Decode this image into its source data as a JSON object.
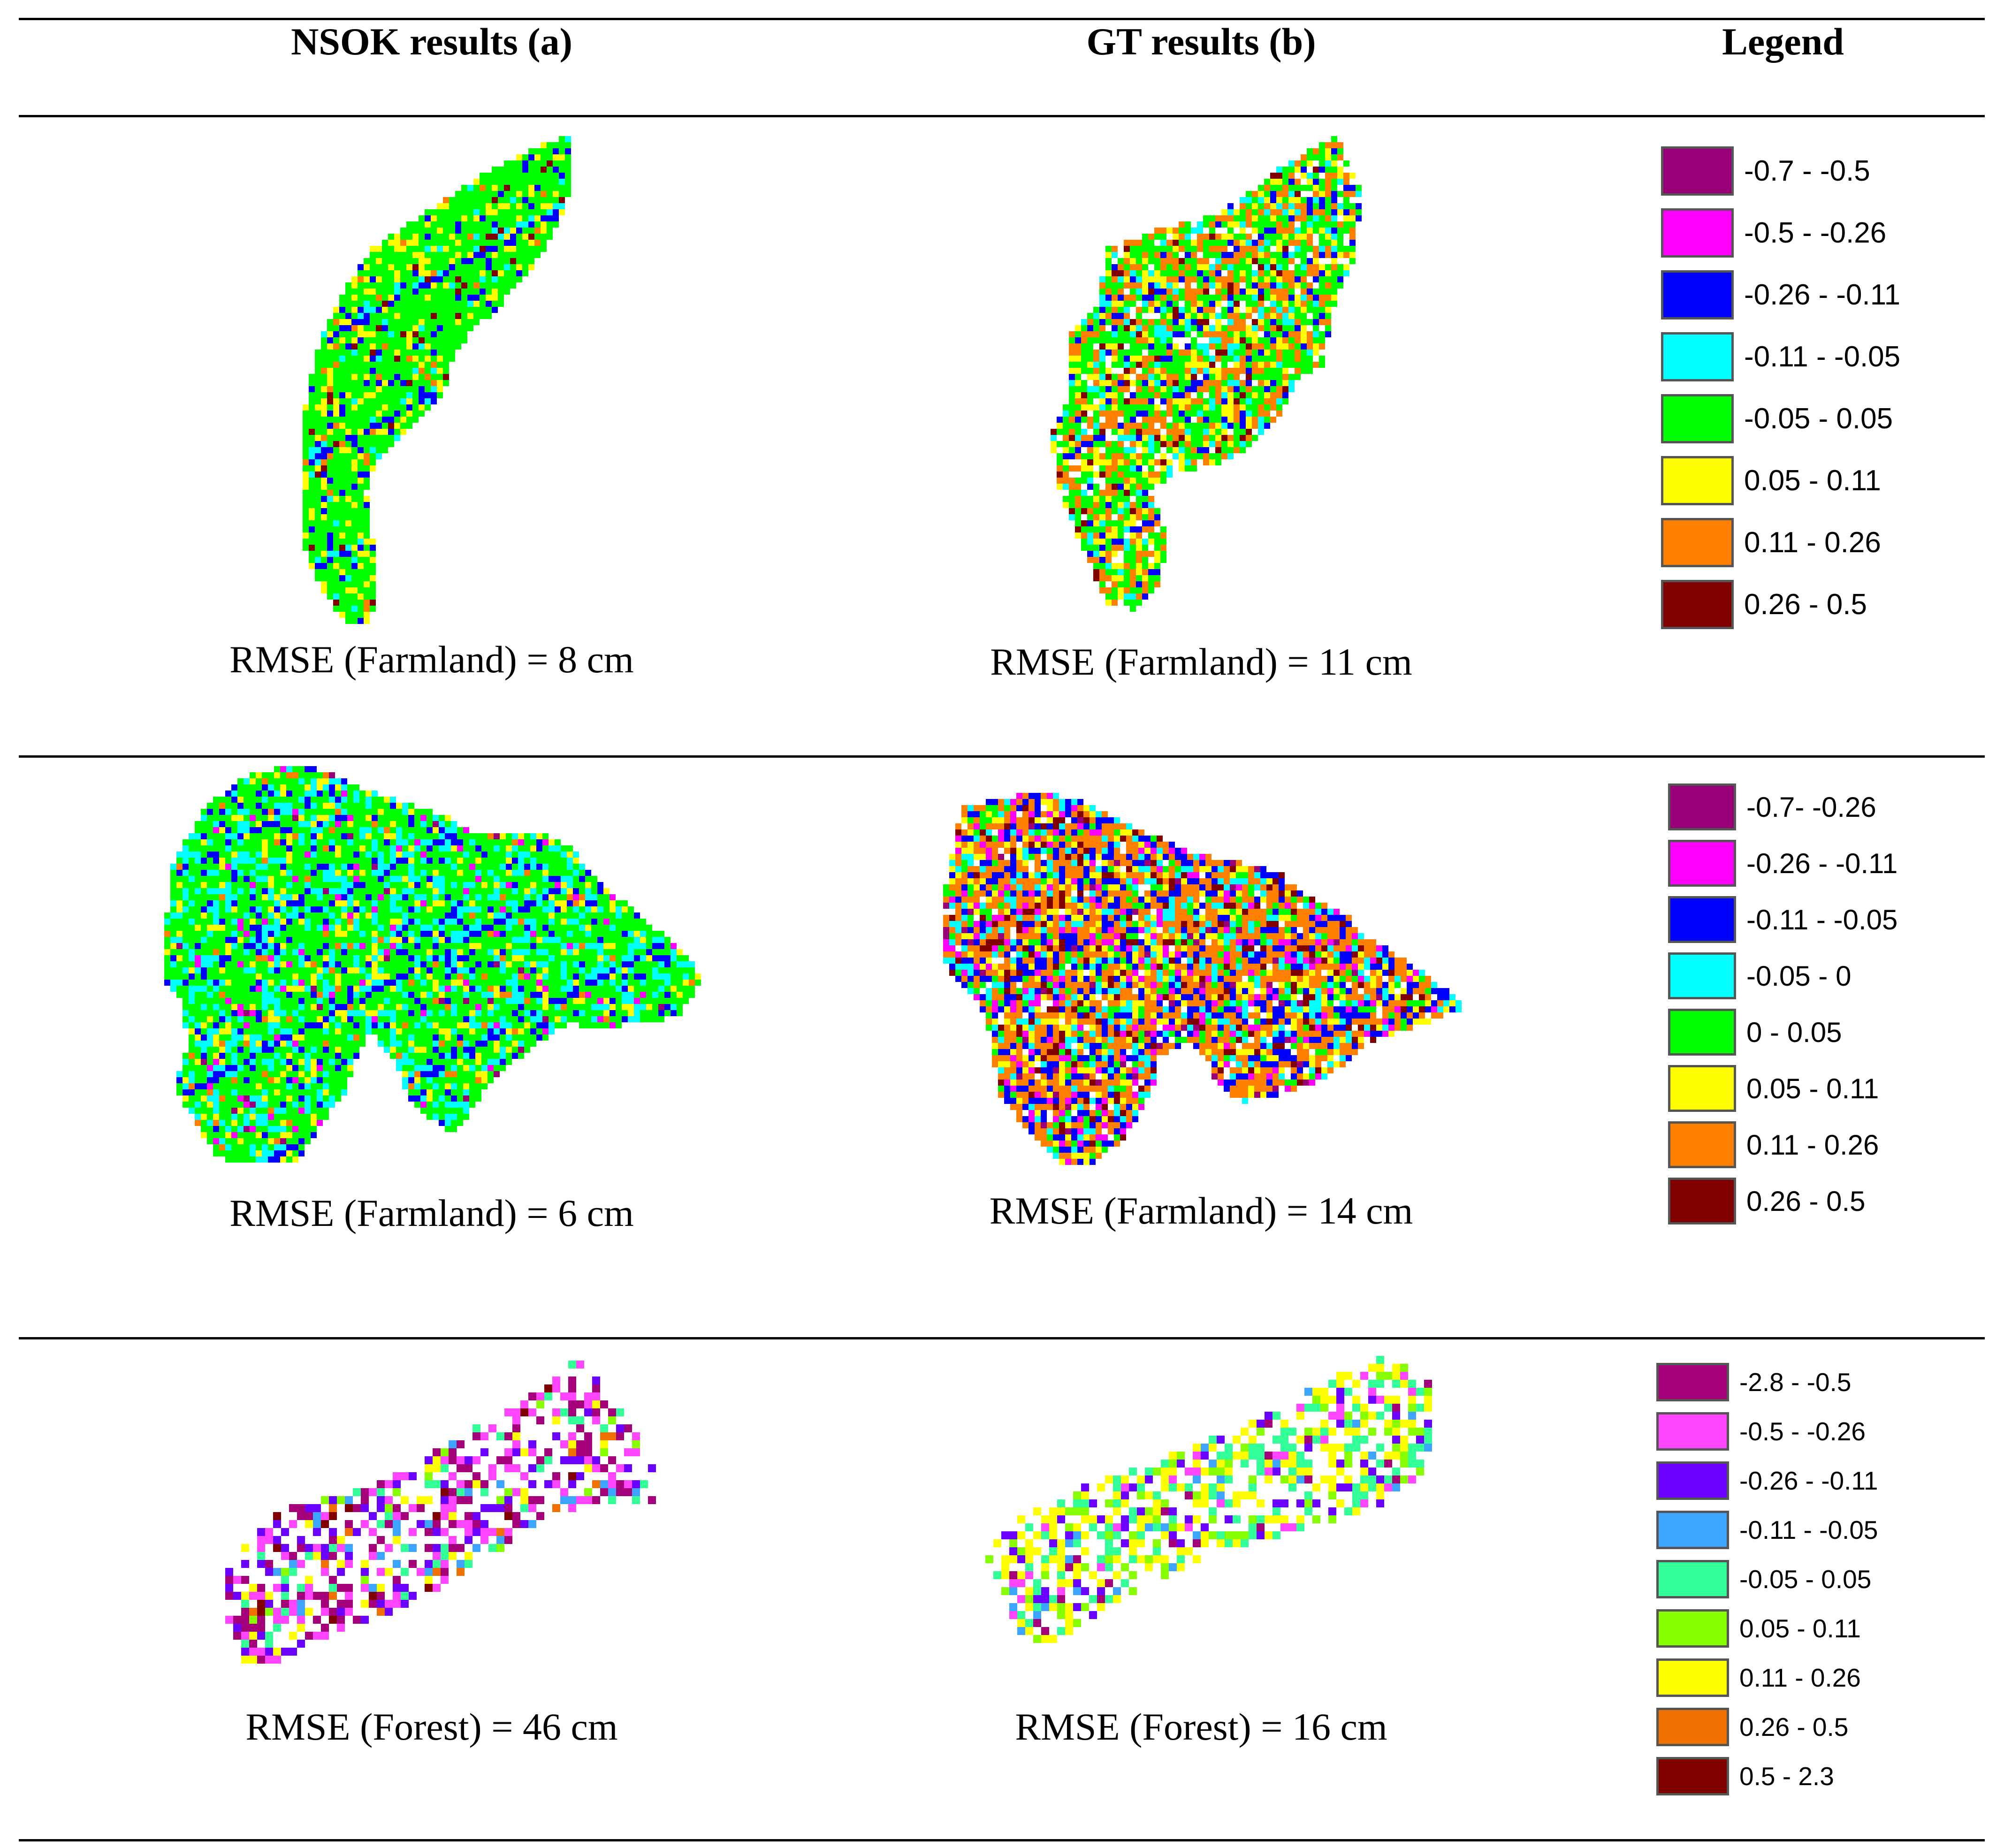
{
  "headers": {
    "col_a": "NSOK results (a)",
    "col_b": "GT results (b)",
    "col_legend": "Legend"
  },
  "rows": [
    {
      "caption_a": "RMSE (Farmland) = 8 cm",
      "caption_b": "RMSE (Farmland) = 11 cm",
      "legend": [
        {
          "label": "-0.7 - -0.5",
          "color": "#990077"
        },
        {
          "label": "-0.5 - -0.26",
          "color": "#ff00ff"
        },
        {
          "label": "-0.26 - -0.11",
          "color": "#0000ff"
        },
        {
          "label": "-0.11 - -0.05",
          "color": "#00ffff"
        },
        {
          "label": "-0.05 - 0.05",
          "color": "#00ff00"
        },
        {
          "label": "0.05 - 0.11",
          "color": "#ffff00"
        },
        {
          "label": "0.11 - 0.26",
          "color": "#ff8000"
        },
        {
          "label": "0.26 - 0.5",
          "color": "#800000"
        }
      ]
    },
    {
      "caption_a": "RMSE (Farmland) = 6 cm",
      "caption_b": "RMSE (Farmland) = 14 cm",
      "legend": [
        {
          "label": "-0.7- -0.26",
          "color": "#990077"
        },
        {
          "label": "-0.26 - -0.11",
          "color": "#ff00ff"
        },
        {
          "label": "-0.11 - -0.05",
          "color": "#0000ff"
        },
        {
          "label": "-0.05 - 0",
          "color": "#00ffff"
        },
        {
          "label": "0 - 0.05",
          "color": "#00ff00"
        },
        {
          "label": "0.05 - 0.11",
          "color": "#ffff00"
        },
        {
          "label": "0.11 - 0.26",
          "color": "#ff8000"
        },
        {
          "label": "0.26 - 0.5",
          "color": "#800000"
        }
      ]
    },
    {
      "caption_a": "RMSE (Forest) = 46 cm",
      "caption_b": "RMSE (Forest) = 16 cm",
      "legend": [
        {
          "label": "-2.8 - -0.5",
          "color": "#a3007a"
        },
        {
          "label": "-0.5 - -0.26",
          "color": "#ff45ff"
        },
        {
          "label": "-0.26 - -0.11",
          "color": "#6a00ff"
        },
        {
          "label": "-0.11 - -0.05",
          "color": "#3da5ff"
        },
        {
          "label": "-0.05 - 0.05",
          "color": "#33ff99"
        },
        {
          "label": "0.05 - 0.11",
          "color": "#88ff00"
        },
        {
          "label": "0.11 - 0.26",
          "color": "#ffff00"
        },
        {
          "label": "0.26 - 0.5",
          "color": "#f07000"
        },
        {
          "label": "0.5 - 2.3",
          "color": "#800000"
        }
      ]
    }
  ],
  "maps": [
    {
      "id": "r1a",
      "weights": [
        0,
        0,
        6,
        3,
        68,
        17,
        3,
        3
      ]
    },
    {
      "id": "r1b",
      "weights": [
        0,
        0,
        5,
        10,
        35,
        14,
        22,
        4
      ]
    },
    {
      "id": "r2a",
      "weights": [
        1,
        3,
        8,
        20,
        55,
        10,
        3,
        0
      ]
    },
    {
      "id": "r2b",
      "weights": [
        3,
        8,
        16,
        12,
        8,
        12,
        33,
        8
      ]
    },
    {
      "id": "r3a",
      "weights": [
        22,
        30,
        14,
        4,
        10,
        4,
        10,
        3,
        3
      ]
    },
    {
      "id": "r3b",
      "weights": [
        3,
        6,
        10,
        4,
        28,
        14,
        35,
        0,
        0
      ]
    }
  ]
}
